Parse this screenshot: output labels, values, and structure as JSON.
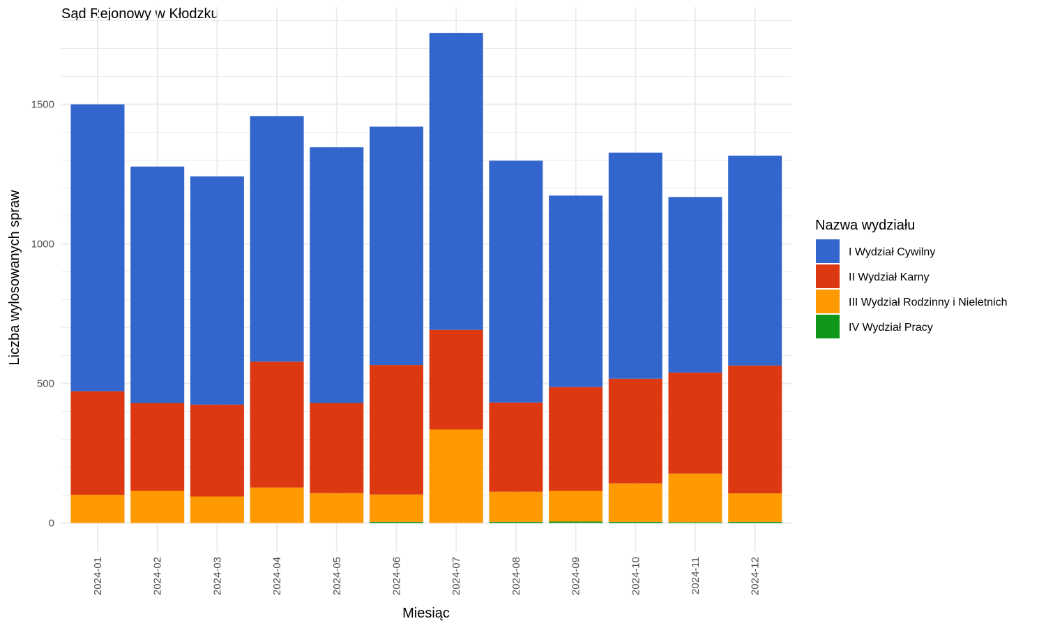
{
  "chart_data": {
    "type": "bar",
    "stacked": true,
    "title": "Sąd Rejonowy w Kłodzku",
    "xlabel": "Miesiąc",
    "ylabel": "Liczba wylosowanych spraw",
    "ylim": [
      0,
      1840
    ],
    "yticks": [
      0,
      500,
      1000,
      1500
    ],
    "grid": true,
    "legend_position": "right",
    "legend_title": "Nazwa wydziału",
    "categories": [
      "2024-01",
      "2024-02",
      "2024-03",
      "2024-04",
      "2024-05",
      "2024-06",
      "2024-07",
      "2024-08",
      "2024-09",
      "2024-10",
      "2024-11",
      "2024-12"
    ],
    "series": [
      {
        "name": "I Wydział Cywilny",
        "color": "#3366cc",
        "values": [
          1028,
          847,
          818,
          880,
          916,
          854,
          1064,
          866,
          686,
          810,
          629,
          752
        ]
      },
      {
        "name": "II Wydział Karny",
        "color": "#dc3912",
        "values": [
          371,
          315,
          329,
          451,
          323,
          464,
          357,
          320,
          372,
          375,
          362,
          458
        ]
      },
      {
        "name": "III Wydział Rodzinny i Nieletnich",
        "color": "#ff9900",
        "values": [
          101,
          115,
          95,
          127,
          107,
          98,
          335,
          108,
          110,
          138,
          174,
          102
        ]
      },
      {
        "name": "IV Wydział Pracy",
        "color": "#109618",
        "values": [
          0,
          0,
          0,
          0,
          0,
          4,
          0,
          4,
          5,
          4,
          3,
          4
        ]
      }
    ]
  }
}
